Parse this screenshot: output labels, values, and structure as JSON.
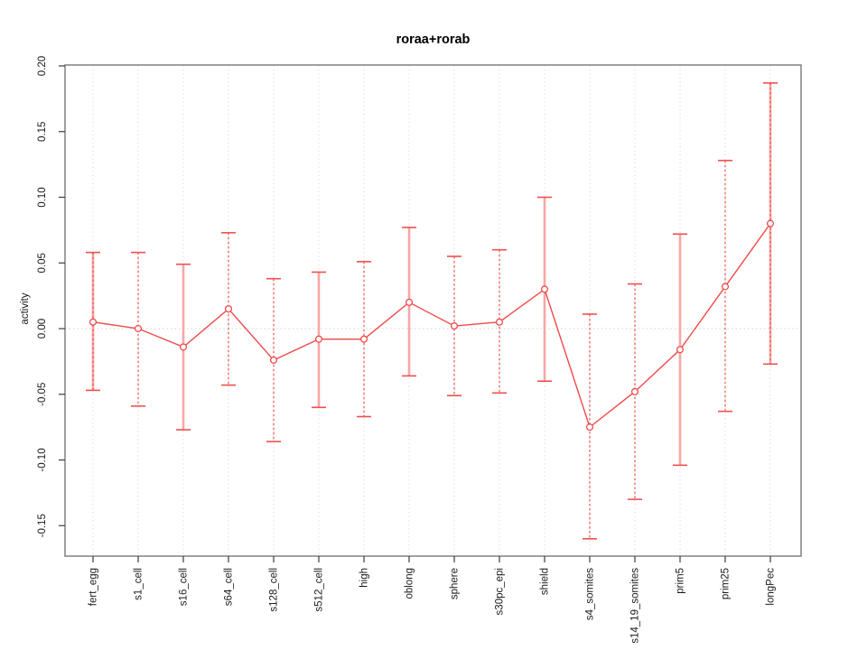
{
  "title": "roraa+rorab",
  "axes": {
    "y_label": "activity",
    "x_label": ""
  },
  "chart_data": {
    "type": "line",
    "title": "roraa+rorab",
    "xlabel": "",
    "ylabel": "activity",
    "legend": "none",
    "grid": "vertical dotted gridlines at each category; dotted horizontal line at y=0",
    "categories": [
      "fert_egg",
      "s1_cell",
      "s16_cell",
      "s64_cell",
      "s128_cell",
      "s512_cell",
      "high",
      "oblong",
      "sphere",
      "s30pc_epi",
      "shield",
      "s4_somites",
      "s14_19_somites",
      "prim5",
      "prim25",
      "longPec"
    ],
    "series": [
      {
        "name": "roraa+rorab",
        "values": [
          0.005,
          0.0,
          -0.014,
          0.015,
          -0.024,
          -0.008,
          -0.008,
          0.02,
          0.002,
          0.005,
          0.03,
          -0.075,
          -0.048,
          -0.016,
          0.032,
          0.08
        ],
        "upper": [
          0.058,
          0.058,
          0.049,
          0.073,
          0.038,
          0.043,
          0.051,
          0.077,
          0.055,
          0.06,
          0.1,
          0.011,
          0.034,
          0.072,
          0.128,
          0.187
        ],
        "lower": [
          -0.047,
          -0.059,
          -0.077,
          -0.043,
          -0.086,
          -0.06,
          -0.067,
          -0.036,
          -0.051,
          -0.049,
          -0.04,
          -0.16,
          -0.13,
          -0.104,
          -0.063,
          -0.027
        ]
      }
    ],
    "bar_styles": [
      "both",
      "dashed",
      "pink",
      "dashed",
      "dashed",
      "pink",
      "dashed",
      "pink",
      "dashed",
      "dashed",
      "pink",
      "dashed",
      "dashed",
      "pink",
      "dashed",
      "both"
    ],
    "yticks": [
      "0.20",
      "0.15",
      "0.10",
      "0.05",
      "0.00",
      "-0.05",
      "-0.10",
      "-0.15"
    ],
    "ylim": [
      -0.173,
      0.201
    ],
    "marker": "open-circle",
    "colors": {
      "line": "#ef4a4a",
      "marker": "#ef4a4a",
      "errorbar_pink": "#f9a6a6",
      "errorbar_red": "#ef5350",
      "cap": "#ee5050",
      "grid": "#dedede",
      "zero_line": "#d0d0d0",
      "frame": "#808080",
      "tick": "#3c3c3c",
      "text": "#1a1a1a",
      "background": "#ffffff"
    }
  }
}
